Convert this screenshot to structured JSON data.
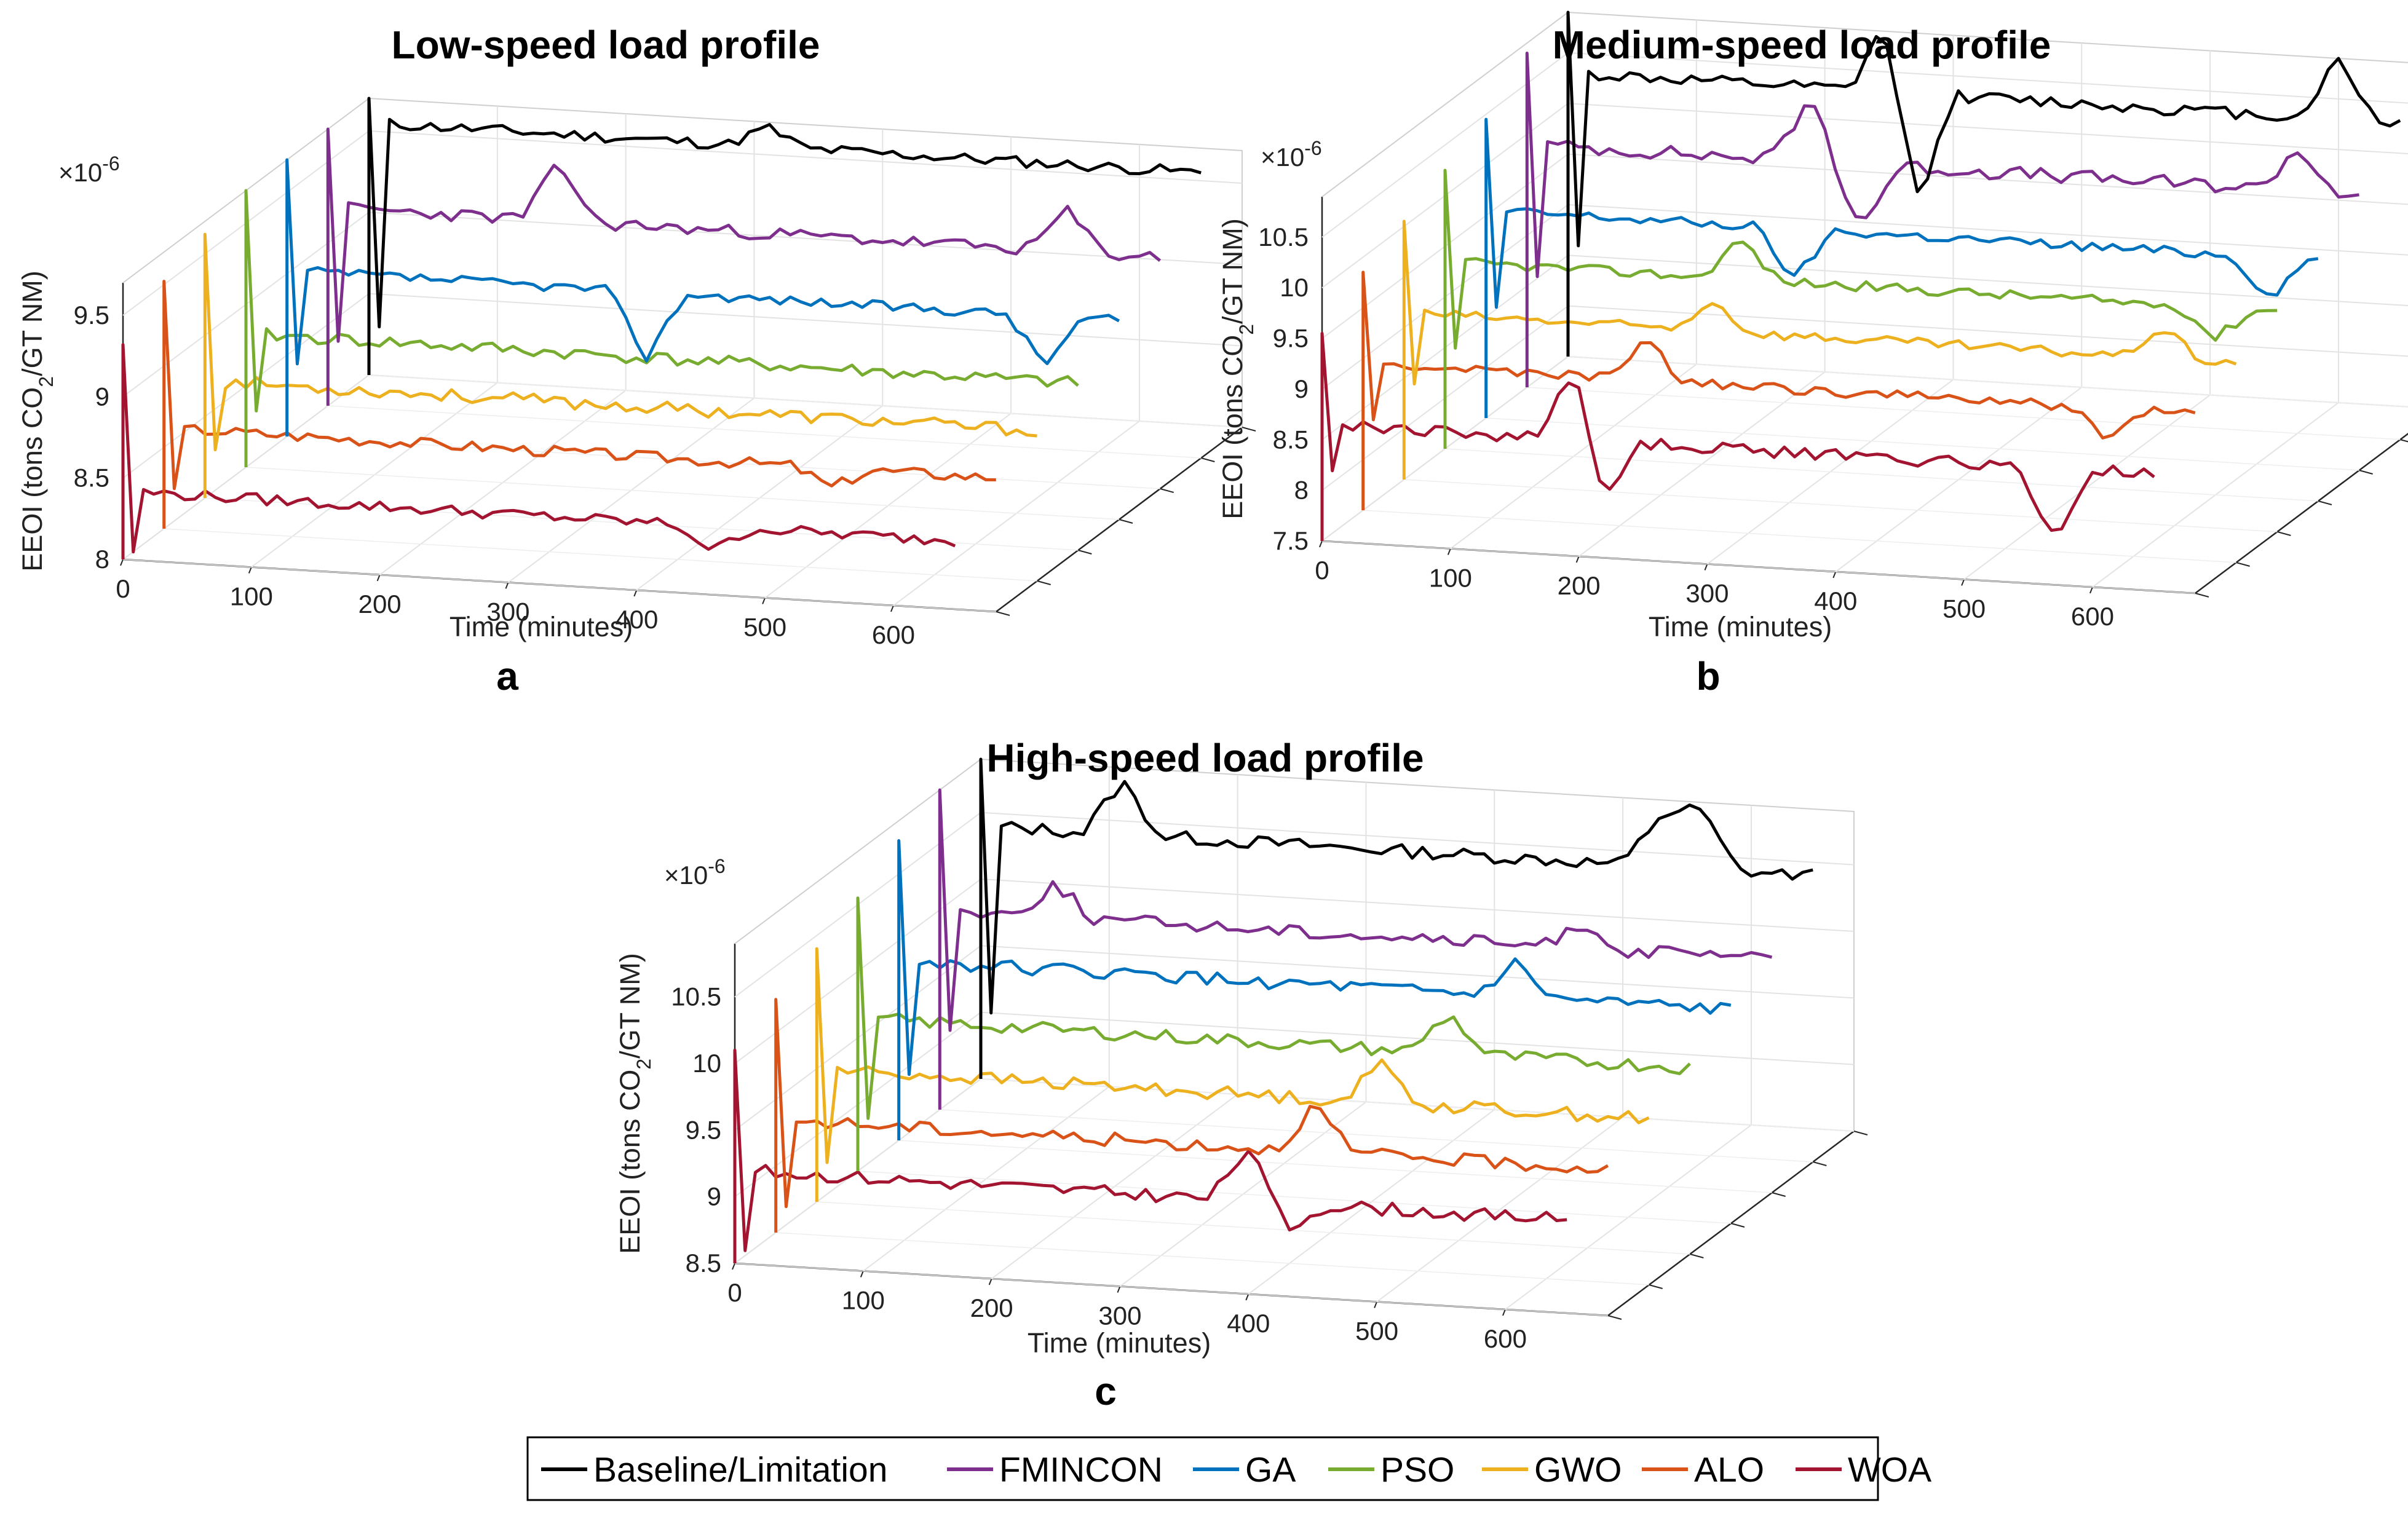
{
  "colors": {
    "Baseline/Limitation": "#000000",
    "FMINCON": "#7E2F8E",
    "GA": "#0072BD",
    "PSO": "#77AC30",
    "GWO": "#EDB120",
    "ALO": "#D95319",
    "WOA": "#A2142F"
  },
  "legend": {
    "position": "bottom-center",
    "items": [
      "Baseline/Limitation",
      "FMINCON",
      "GA",
      "PSO",
      "GWO",
      "ALO",
      "WOA"
    ]
  },
  "chart_data": [
    {
      "type": "line",
      "letter": "a",
      "title": "Low-speed load profile",
      "xlabel": "Time (minutes)",
      "ylabel_main": "EEOI (tons CO",
      "ylabel_sub": "2",
      "ylabel_end": "/GT NM)",
      "exponent_base": "×10",
      "exponent_power": "-6",
      "x_ticks": [
        0,
        100,
        200,
        300,
        400,
        500,
        600
      ],
      "x_tick_labels": [
        "0",
        "100",
        "200",
        "300",
        "400",
        "500",
        "600"
      ],
      "y_ticks": [
        8,
        8.5,
        9,
        9.5
      ],
      "y_tick_labels": [
        "8",
        "8.5",
        "9",
        "9.5"
      ],
      "ylim": [
        8,
        9.7
      ],
      "series": [
        {
          "name": "Baseline/Limitation",
          "level": 9.55,
          "base": 8.3,
          "features": [
            [
              310,
              0.12
            ]
          ],
          "amp": 0.035,
          "seed": 11
        },
        {
          "name": "FMINCON",
          "level": 9.22,
          "base": 8.4,
          "features": [
            [
              180,
              0.35
            ],
            [
              575,
              0.25
            ]
          ],
          "amp": 0.04,
          "seed": 23
        },
        {
          "name": "GA",
          "level": 9.02,
          "base": 8.45,
          "features": [
            [
              280,
              -0.4
            ],
            [
              590,
              -0.3
            ]
          ],
          "amp": 0.03,
          "seed": 37
        },
        {
          "name": "PSO",
          "level": 8.82,
          "base": 8.35,
          "features": [],
          "amp": 0.04,
          "seed": 41
        },
        {
          "name": "GWO",
          "level": 8.72,
          "base": 8.3,
          "features": [],
          "amp": 0.04,
          "seed": 53
        },
        {
          "name": "ALO",
          "level": 8.62,
          "base": 8.25,
          "features": [
            [
              520,
              -0.12
            ]
          ],
          "amp": 0.035,
          "seed": 67
        },
        {
          "name": "WOA",
          "level": 8.42,
          "base": 8.05,
          "features": [
            [
              460,
              -0.15
            ]
          ],
          "amp": 0.035,
          "seed": 79
        }
      ]
    },
    {
      "type": "line",
      "letter": "b",
      "title": "Medium-speed load profile",
      "xlabel": "Time (minutes)",
      "ylabel_main": "EEOI (tons CO",
      "ylabel_sub": "2",
      "ylabel_end": "/GT NM)",
      "exponent_base": "×10",
      "exponent_power": "-6",
      "x_ticks": [
        0,
        100,
        200,
        300,
        400,
        500,
        600
      ],
      "x_tick_labels": [
        "0",
        "100",
        "200",
        "300",
        "400",
        "500",
        "600"
      ],
      "y_ticks": [
        7.5,
        8,
        8.5,
        9,
        9.5,
        10,
        10.5
      ],
      "y_tick_labels": [
        "7.5",
        "8",
        "8.5",
        "9",
        "9.5",
        "10",
        "10.5"
      ],
      "ylim": [
        7.5,
        10.9
      ],
      "series": [
        {
          "name": "Baseline/Limitation",
          "level": 10.3,
          "base": 8.6,
          "features": [
            [
              250,
              0.8
            ],
            [
              270,
              -1.2
            ],
            [
              600,
              0.6
            ]
          ],
          "amp": 0.06,
          "seed": 12
        },
        {
          "name": "FMINCON",
          "level": 9.9,
          "base": 8.6,
          "features": [
            [
              220,
              0.6
            ],
            [
              260,
              -0.6
            ],
            [
              600,
              0.4
            ]
          ],
          "amp": 0.07,
          "seed": 24
        },
        {
          "name": "GA",
          "level": 9.55,
          "base": 8.6,
          "features": [
            [
              240,
              -0.5
            ],
            [
              610,
              -0.4
            ]
          ],
          "amp": 0.05,
          "seed": 38
        },
        {
          "name": "PSO",
          "level": 9.35,
          "base": 8.5,
          "features": [
            [
              230,
              0.4
            ],
            [
              600,
              -0.3
            ]
          ],
          "amp": 0.05,
          "seed": 42
        },
        {
          "name": "GWO",
          "level": 9.15,
          "base": 8.45,
          "features": [
            [
              240,
              0.3
            ],
            [
              590,
              0.3
            ]
          ],
          "amp": 0.05,
          "seed": 54
        },
        {
          "name": "ALO",
          "level": 8.95,
          "base": 8.4,
          "features": [
            [
              220,
              0.4
            ],
            [
              580,
              -0.3
            ]
          ],
          "amp": 0.05,
          "seed": 68
        },
        {
          "name": "WOA",
          "level": 8.65,
          "base": 8.2,
          "features": [
            [
              200,
              1.0
            ],
            [
              215,
              -0.9
            ],
            [
              570,
              -0.7
            ]
          ],
          "amp": 0.06,
          "seed": 80
        }
      ]
    },
    {
      "type": "line",
      "letter": "c",
      "title": "High-speed load profile",
      "xlabel": "Time (minutes)",
      "ylabel_main": "EEOI (tons CO",
      "ylabel_sub": "2",
      "ylabel_end": "/GT NM)",
      "exponent_base": "×10",
      "exponent_power": "-6",
      "x_ticks": [
        0,
        100,
        200,
        300,
        400,
        500,
        600
      ],
      "x_tick_labels": [
        "0",
        "100",
        "200",
        "300",
        "400",
        "500",
        "600"
      ],
      "y_ticks": [
        8.5,
        9,
        9.5,
        10,
        10.5
      ],
      "y_tick_labels": [
        "8.5",
        "9",
        "9.5",
        "10",
        "10.5"
      ],
      "ylim": [
        8.5,
        10.9
      ],
      "series": [
        {
          "name": "Baseline/Limitation",
          "level": 10.4,
          "base": 9.0,
          "features": [
            [
              110,
              0.4
            ],
            [
              530,
              0.4
            ],
            [
              560,
              0.45
            ]
          ],
          "amp": 0.05,
          "seed": 13
        },
        {
          "name": "FMINCON",
          "level": 10.0,
          "base": 9.1,
          "features": [
            [
              90,
              0.25
            ],
            [
              500,
              0.2
            ]
          ],
          "amp": 0.05,
          "seed": 25
        },
        {
          "name": "GA",
          "level": 9.85,
          "base": 9.0,
          "features": [
            [
              480,
              0.25
            ]
          ],
          "amp": 0.05,
          "seed": 39
        },
        {
          "name": "PSO",
          "level": 9.65,
          "base": 8.9,
          "features": [
            [
              460,
              0.3
            ]
          ],
          "amp": 0.05,
          "seed": 43
        },
        {
          "name": "GWO",
          "level": 9.5,
          "base": 8.8,
          "features": [
            [
              440,
              0.3
            ]
          ],
          "amp": 0.05,
          "seed": 55
        },
        {
          "name": "ALO",
          "level": 9.35,
          "base": 8.7,
          "features": [
            [
              420,
              0.35
            ]
          ],
          "amp": 0.05,
          "seed": 69
        },
        {
          "name": "WOA",
          "level": 9.2,
          "base": 8.6,
          "features": [
            [
              400,
              0.4
            ],
            [
              430,
              -0.2
            ]
          ],
          "amp": 0.05,
          "seed": 81
        }
      ]
    }
  ]
}
